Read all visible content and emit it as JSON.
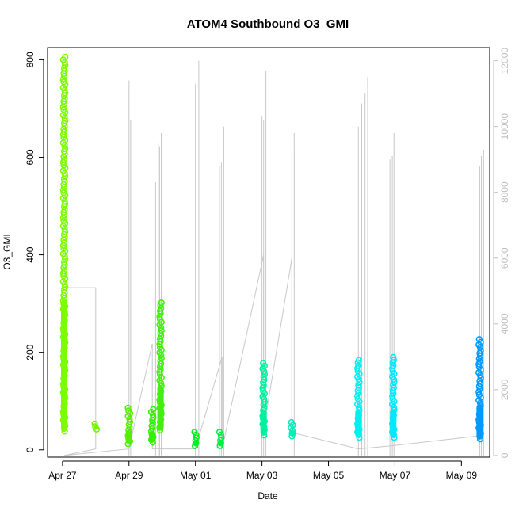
{
  "chart_data": {
    "type": "scatter",
    "title": "ATOM4 Southbound O3_GMI",
    "xlabel": "Date",
    "ylabel": "O3_GMI",
    "x_ticks": [
      "Apr 27",
      "Apr 29",
      "May 01",
      "May 03",
      "May 05",
      "May 07",
      "May 09"
    ],
    "x_tick_days": [
      0,
      2,
      4,
      6,
      8,
      10,
      12
    ],
    "xlim_days": [
      -0.45,
      12.85
    ],
    "ylim": [
      -15,
      825
    ],
    "y_ticks": [
      0,
      200,
      400,
      600,
      800
    ],
    "y2_ticks": [
      0,
      2000,
      4000,
      6000,
      8000,
      10000,
      12000
    ],
    "y2lim": [
      -50,
      12400
    ],
    "legend": "none",
    "grid": false,
    "colors": {
      "altitude_line": "#c8c8c8",
      "right_axis": "#bfbfbf",
      "frame": "#000000"
    },
    "series": [
      {
        "day": 0.05,
        "ymin": 38,
        "ymax": 810,
        "color": "#7CFC00"
      },
      {
        "day": 1.0,
        "ymin": 42,
        "ymax": 55,
        "color": "#73f500"
      },
      {
        "day": 2.0,
        "ymin": 12,
        "ymax": 88,
        "color": "#55ee00"
      },
      {
        "day": 2.7,
        "ymin": 15,
        "ymax": 85,
        "color": "#33f000"
      },
      {
        "day": 2.95,
        "ymin": 40,
        "ymax": 305,
        "color": "#44ee11"
      },
      {
        "day": 4.0,
        "ymin": 8,
        "ymax": 42,
        "color": "#00ee22"
      },
      {
        "day": 4.75,
        "ymin": 8,
        "ymax": 38,
        "color": "#00ee44"
      },
      {
        "day": 6.05,
        "ymin": 30,
        "ymax": 178,
        "color": "#00f0a0"
      },
      {
        "day": 6.9,
        "ymin": 28,
        "ymax": 62,
        "color": "#00f0b8"
      },
      {
        "day": 8.9,
        "ymin": 25,
        "ymax": 185,
        "color": "#00f0f0"
      },
      {
        "day": 9.95,
        "ymin": 25,
        "ymax": 192,
        "color": "#00e8ff"
      },
      {
        "day": 12.55,
        "ymin": 22,
        "ymax": 228,
        "color": "#0099ff"
      }
    ],
    "altitude_y2_profile": [
      [
        0.05,
        5100
      ],
      [
        1.0,
        5100
      ],
      [
        1.0,
        200
      ],
      [
        0.05,
        0
      ],
      [
        2.0,
        200
      ],
      [
        2.7,
        3400
      ],
      [
        2.7,
        200
      ],
      [
        2.95,
        200
      ],
      [
        4.0,
        200
      ],
      [
        4.8,
        3000
      ],
      [
        4.8,
        200
      ],
      [
        6.05,
        6100
      ],
      [
        6.05,
        800
      ],
      [
        6.9,
        6000
      ],
      [
        6.9,
        700
      ],
      [
        8.9,
        200
      ],
      [
        9.95,
        300
      ],
      [
        12.55,
        600
      ]
    ],
    "altitude_y2_spikes": [
      [
        2.0,
        11400
      ],
      [
        2.05,
        10200
      ],
      [
        2.8,
        8300
      ],
      [
        2.88,
        9500
      ],
      [
        2.92,
        9400
      ],
      [
        2.97,
        9800
      ],
      [
        4.0,
        11300
      ],
      [
        4.1,
        12000
      ],
      [
        4.72,
        8800
      ],
      [
        4.78,
        8900
      ],
      [
        4.85,
        10000
      ],
      [
        6.0,
        10300
      ],
      [
        6.05,
        10200
      ],
      [
        6.12,
        11700
      ],
      [
        6.9,
        9300
      ],
      [
        6.97,
        9800
      ],
      [
        8.9,
        10000
      ],
      [
        9.0,
        10700
      ],
      [
        9.1,
        11000
      ],
      [
        9.18,
        11500
      ],
      [
        9.85,
        9000
      ],
      [
        9.92,
        9100
      ],
      [
        9.97,
        9800
      ],
      [
        12.55,
        8800
      ],
      [
        12.6,
        9100
      ],
      [
        12.67,
        9300
      ]
    ]
  }
}
